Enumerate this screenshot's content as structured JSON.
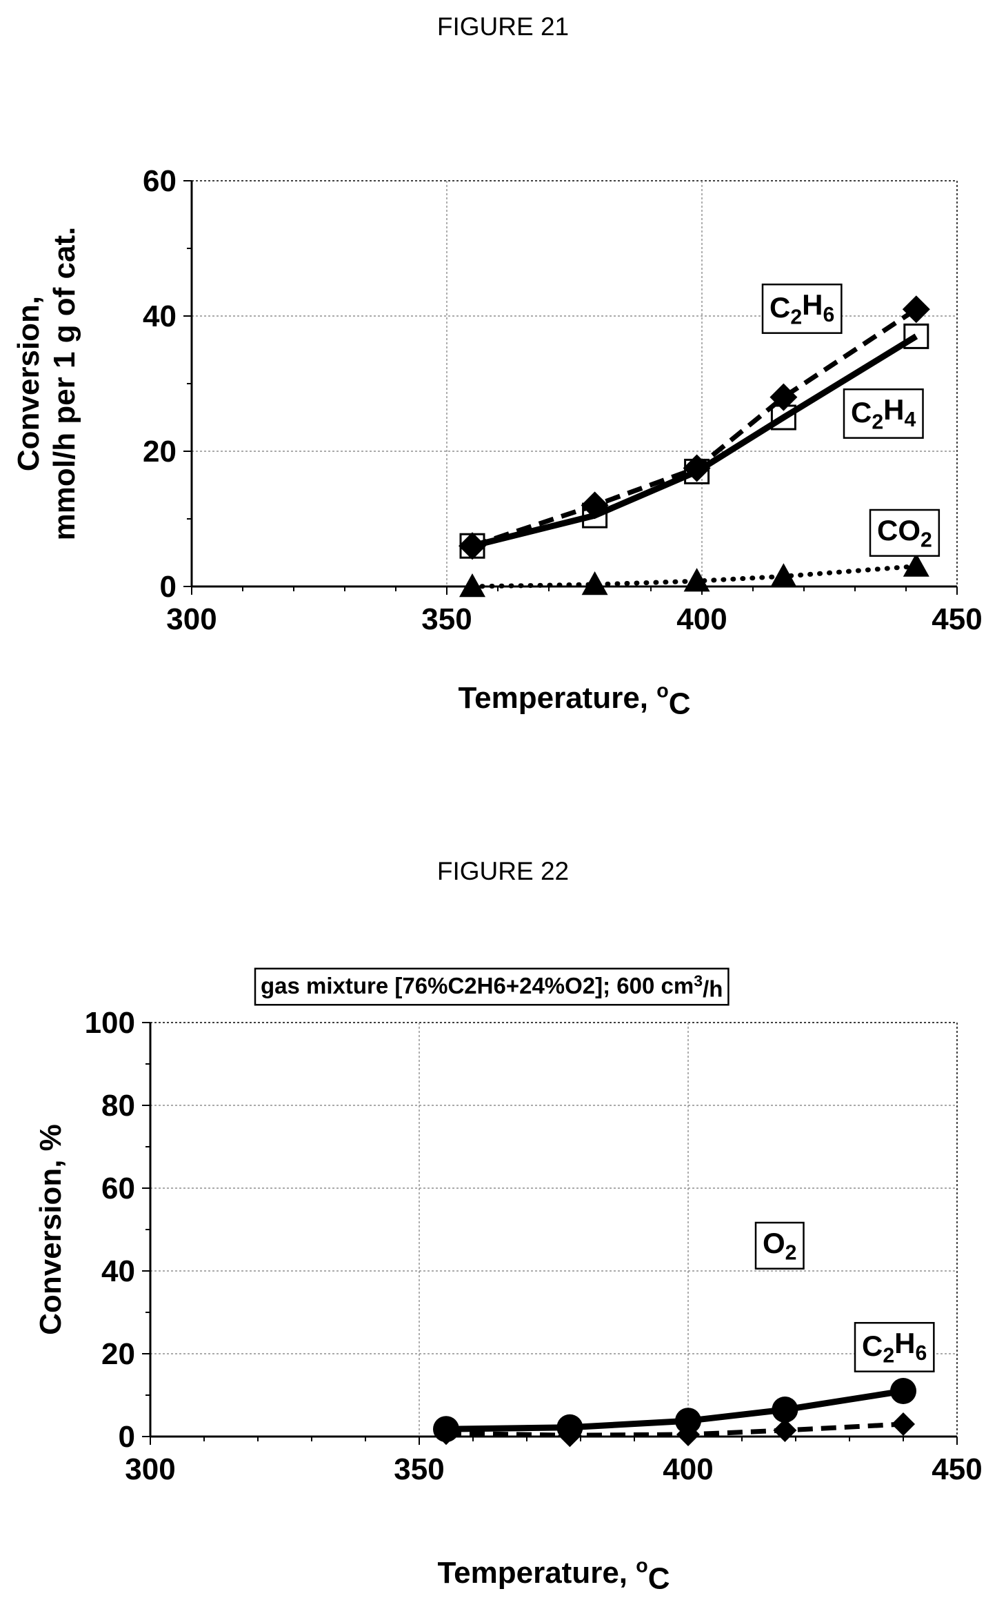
{
  "figures": [
    {
      "caption": "FIGURE 21",
      "chart_data": {
        "type": "line",
        "title": "",
        "xlabel_main": "Temperature, ",
        "xlabel_sup": "o",
        "xlabel_tail": "C",
        "ylabel_lines": [
          "Conversion,",
          "mmol/h per 1 g of cat."
        ],
        "xlim": [
          300,
          450
        ],
        "ylim": [
          0,
          60
        ],
        "xticks": [
          300,
          350,
          400,
          450
        ],
        "yticks": [
          0,
          20,
          40,
          60
        ],
        "grid": true,
        "series": [
          {
            "label_parts": [
              [
                "C",
                ""
              ],
              [
                "2",
                "sub"
              ],
              [
                "H",
                ""
              ],
              [
                "6",
                "sub"
              ]
            ],
            "marker": "diamond",
            "line": "dashed",
            "x": [
              355,
              379,
              399,
              416,
              442
            ],
            "y": [
              6,
              12,
              17.5,
              28,
              41
            ]
          },
          {
            "label_parts": [
              [
                "C",
                ""
              ],
              [
                "2",
                "sub"
              ],
              [
                "H",
                ""
              ],
              [
                "4",
                "sub"
              ]
            ],
            "marker": "square-open",
            "line": "solid",
            "x": [
              355,
              379,
              399,
              416,
              442
            ],
            "y": [
              6,
              10.5,
              17,
              25,
              37
            ]
          },
          {
            "label_parts": [
              [
                "CO",
                ""
              ],
              [
                "2",
                "sub"
              ]
            ],
            "marker": "triangle",
            "line": "dotted",
            "x": [
              355,
              379,
              399,
              416,
              442
            ],
            "y": [
              0,
              0.3,
              0.8,
              1.5,
              3
            ]
          }
        ]
      }
    },
    {
      "caption": "FIGURE 22",
      "chart_data": {
        "type": "line",
        "title": "",
        "annotation_parts": [
          [
            "gas mixture [76%C2H6+24%O2]; 600 cm",
            ""
          ],
          [
            "3",
            "sup"
          ],
          [
            "/h",
            ""
          ]
        ],
        "xlabel_main": "Temperature, ",
        "xlabel_sup": "o",
        "xlabel_tail": "C",
        "ylabel_lines": [
          "Conversion, %"
        ],
        "xlim": [
          300,
          450
        ],
        "ylim": [
          0,
          100
        ],
        "xticks": [
          300,
          350,
          400,
          450
        ],
        "yticks": [
          0,
          20,
          40,
          60,
          80,
          100
        ],
        "grid": true,
        "series": [
          {
            "label_parts": [
              [
                "O",
                ""
              ],
              [
                "2",
                "sub"
              ]
            ],
            "marker": "circle",
            "line": "solid",
            "x": [
              355,
              378,
              400,
              418,
              440
            ],
            "y": [
              1.8,
              2.2,
              3.8,
              6.5,
              11
            ]
          },
          {
            "label_parts": [
              [
                "C",
                ""
              ],
              [
                "2",
                "sub"
              ],
              [
                "H",
                ""
              ],
              [
                "6",
                "sub"
              ]
            ],
            "marker": "diamond",
            "line": "dashed",
            "x": [
              355,
              378,
              400,
              418,
              440
            ],
            "y": [
              0.8,
              0.3,
              0.5,
              1.5,
              3
            ]
          }
        ]
      }
    }
  ]
}
